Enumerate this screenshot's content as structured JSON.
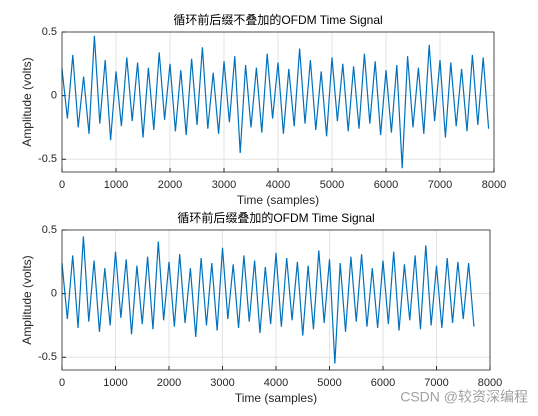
{
  "chart_data": [
    {
      "type": "line",
      "title": "循环前后缀不叠加的OFDM Time Signal",
      "xlabel": "Time (samples)",
      "ylabel": "Amplitude (volts)",
      "x": [
        0,
        100,
        200,
        300,
        400,
        500,
        600,
        700,
        800,
        900,
        1000,
        1100,
        1200,
        1300,
        1400,
        1500,
        1600,
        1700,
        1800,
        1900,
        2000,
        2100,
        2200,
        2300,
        2400,
        2500,
        2600,
        2700,
        2800,
        2900,
        3000,
        3100,
        3200,
        3300,
        3400,
        3500,
        3600,
        3700,
        3800,
        3900,
        4000,
        4100,
        4200,
        4300,
        4400,
        4500,
        4600,
        4700,
        4800,
        4900,
        5000,
        5100,
        5200,
        5300,
        5400,
        5500,
        5600,
        5700,
        5800,
        5900,
        6000,
        6100,
        6200,
        6300,
        6400,
        6500,
        6600,
        6700,
        6800,
        6900,
        7000,
        7100,
        7200,
        7300,
        7400,
        7500,
        7600,
        7700,
        7800,
        7900
      ],
      "values": [
        0.21,
        -0.18,
        0.32,
        -0.25,
        0.15,
        -0.3,
        0.47,
        -0.22,
        0.28,
        -0.35,
        0.19,
        -0.24,
        0.3,
        -0.2,
        0.26,
        -0.33,
        0.22,
        -0.27,
        0.34,
        -0.19,
        0.25,
        -0.28,
        0.2,
        -0.31,
        0.29,
        -0.23,
        0.38,
        -0.26,
        0.18,
        -0.3,
        0.27,
        -0.21,
        0.31,
        -0.45,
        0.24,
        -0.25,
        0.22,
        -0.29,
        0.33,
        -0.18,
        0.26,
        -0.3,
        0.21,
        -0.24,
        0.37,
        -0.22,
        0.28,
        -0.27,
        0.19,
        -0.32,
        0.3,
        -0.2,
        0.25,
        -0.28,
        0.23,
        -0.26,
        0.33,
        -0.22,
        0.27,
        -0.31,
        0.2,
        -0.29,
        0.24,
        -0.57,
        0.31,
        -0.25,
        0.22,
        -0.3,
        0.4,
        -0.2,
        0.28,
        -0.33,
        0.26,
        -0.24,
        0.21,
        -0.28,
        0.32,
        -0.23,
        0.3,
        -0.26
      ],
      "color": "#0072bd",
      "xlim": [
        0,
        8000
      ],
      "xticks": [
        0,
        1000,
        2000,
        3000,
        4000,
        5000,
        6000,
        7000,
        8000
      ],
      "ylim": [
        -0.6,
        0.5
      ],
      "yticks": [
        -0.5,
        0,
        0.5
      ],
      "grid": true
    },
    {
      "type": "line",
      "title": "循环前后缀叠加的OFDM Time Signal",
      "xlabel": "Time (samples)",
      "ylabel": "Amplitude (volts)",
      "x": [
        0,
        100,
        200,
        300,
        400,
        500,
        600,
        700,
        800,
        900,
        1000,
        1100,
        1200,
        1300,
        1400,
        1500,
        1600,
        1700,
        1800,
        1900,
        2000,
        2100,
        2200,
        2300,
        2400,
        2500,
        2600,
        2700,
        2800,
        2900,
        3000,
        3100,
        3200,
        3300,
        3400,
        3500,
        3600,
        3700,
        3800,
        3900,
        4000,
        4100,
        4200,
        4300,
        4400,
        4500,
        4600,
        4700,
        4800,
        4900,
        5000,
        5100,
        5200,
        5300,
        5400,
        5500,
        5600,
        5700,
        5800,
        5900,
        6000,
        6100,
        6200,
        6300,
        6400,
        6500,
        6600,
        6700,
        6800,
        6900,
        7000,
        7100,
        7200,
        7300,
        7400,
        7500,
        7600,
        7700
      ],
      "values": [
        0.24,
        -0.2,
        0.3,
        -0.27,
        0.45,
        -0.22,
        0.26,
        -0.3,
        0.2,
        -0.25,
        0.33,
        -0.19,
        0.27,
        -0.32,
        0.22,
        -0.24,
        0.29,
        -0.28,
        0.41,
        -0.21,
        0.25,
        -0.26,
        0.31,
        -0.23,
        0.2,
        -0.34,
        0.28,
        -0.25,
        0.24,
        -0.29,
        0.36,
        -0.2,
        0.23,
        -0.27,
        0.3,
        -0.22,
        0.26,
        -0.31,
        0.21,
        -0.24,
        0.32,
        -0.26,
        0.28,
        -0.21,
        0.25,
        -0.33,
        0.22,
        -0.28,
        0.34,
        -0.23,
        0.27,
        -0.55,
        0.24,
        -0.3,
        0.29,
        -0.22,
        0.31,
        -0.26,
        0.2,
        -0.27,
        0.26,
        -0.24,
        0.33,
        -0.29,
        0.23,
        -0.21,
        0.3,
        -0.28,
        0.38,
        -0.25,
        0.22,
        -0.27,
        0.28,
        -0.23,
        0.25,
        -0.2,
        0.24,
        -0.26
      ],
      "color": "#0072bd",
      "xlim": [
        0,
        8000
      ],
      "xticks": [
        0,
        1000,
        2000,
        3000,
        4000,
        5000,
        6000,
        7000,
        8000
      ],
      "ylim": [
        -0.6,
        0.5
      ],
      "yticks": [
        -0.5,
        0,
        0.5
      ],
      "grid": true
    }
  ],
  "watermark": "CSDN @较资深编程"
}
